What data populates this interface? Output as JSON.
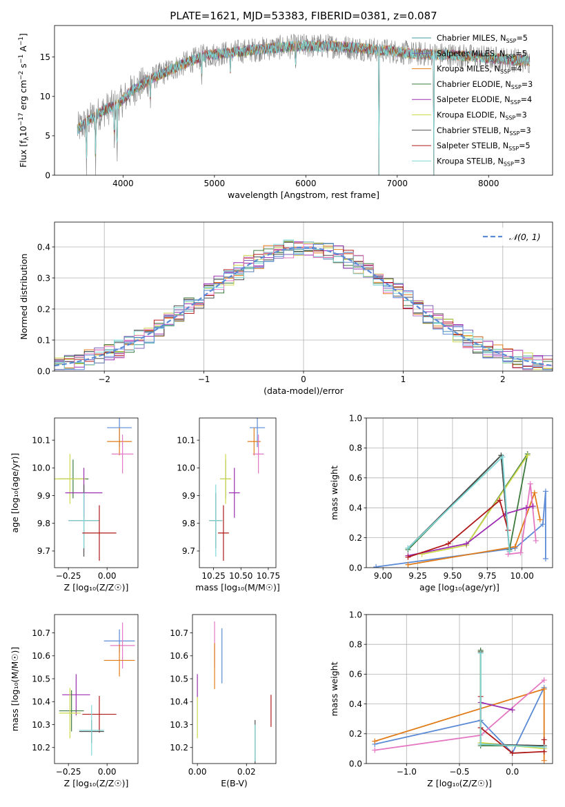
{
  "chart_data": [
    {
      "id": "spectrum",
      "type": "line",
      "title": "PLATE=1621, MJD=53383, FIBERID=0381, z=0.087",
      "xlabel": "wavelength [Angstrom, rest frame]",
      "ylabel_parts": [
        "Flux [f",
        "λ",
        "10",
        "−17",
        " erg cm",
        "−2",
        " s",
        "−1",
        " A",
        "−1",
        "]"
      ],
      "xlim": [
        3250,
        8700
      ],
      "ylim": [
        0,
        19
      ],
      "xticks": [
        4000,
        5000,
        6000,
        7000,
        8000
      ],
      "yticks": [
        0,
        5,
        10,
        15
      ],
      "continuum": [
        [
          3500,
          5.8
        ],
        [
          3650,
          7.2
        ],
        [
          3800,
          8.3
        ],
        [
          3950,
          9.0
        ],
        [
          4100,
          10.8
        ],
        [
          4300,
          12.2
        ],
        [
          4500,
          13.3
        ],
        [
          4700,
          14.3
        ],
        [
          4900,
          15.2
        ],
        [
          5200,
          15.6
        ],
        [
          5500,
          16.0
        ],
        [
          5800,
          16.3
        ],
        [
          6000,
          16.4
        ],
        [
          6300,
          16.4
        ],
        [
          6600,
          16.1
        ],
        [
          6900,
          15.8
        ],
        [
          7200,
          15.4
        ],
        [
          7500,
          15.3
        ],
        [
          7800,
          15.1
        ],
        [
          8100,
          14.8
        ],
        [
          8450,
          14.5
        ]
      ],
      "absorption_dips": [
        [
          3600,
          0
        ],
        [
          3700,
          0
        ],
        [
          3905,
          2.2
        ],
        [
          3935,
          0
        ],
        [
          4300,
          8.5
        ],
        [
          4860,
          11.5
        ],
        [
          5175,
          12.5
        ],
        [
          5890,
          12.8
        ],
        [
          6800,
          0
        ],
        [
          7400,
          0
        ]
      ],
      "legend": [
        {
          "label": "Chabrier MILES, N",
          "sub": "SSP",
          "suffix": "=5",
          "color": "#3d9e9e"
        },
        {
          "label": "Salpeter MILES, N",
          "sub": "SSP",
          "suffix": "=5",
          "color": "#7b5fb7"
        },
        {
          "label": "Kroupa MILES, N",
          "sub": "SSP",
          "suffix": "=4",
          "color": "#e07b18"
        },
        {
          "label": "Chabrier ELODIE, N",
          "sub": "SSP",
          "suffix": "=3",
          "color": "#3d7a3d"
        },
        {
          "label": "Salpeter ELODIE, N",
          "sub": "SSP",
          "suffix": "=4",
          "color": "#9b2db0"
        },
        {
          "label": "Kroupa ELODIE, N",
          "sub": "SSP",
          "suffix": "=3",
          "color": "#cdd94a"
        },
        {
          "label": "Chabrier STELIB, N",
          "sub": "SSP",
          "suffix": "=3",
          "color": "#4d4d4d"
        },
        {
          "label": "Salpeter STELIB, N",
          "sub": "SSP",
          "suffix": "=5",
          "color": "#b01818"
        },
        {
          "label": "Kroupa STELIB, N",
          "sub": "SSP",
          "suffix": "=3",
          "color": "#7fd8d8"
        }
      ]
    },
    {
      "id": "residuals",
      "type": "line",
      "xlabel": "(data-model)/error",
      "ylabel": "Normed distribution",
      "xlim": [
        -2.5,
        2.5
      ],
      "ylim": [
        0,
        0.48
      ],
      "xticks": [
        -2,
        -1,
        0,
        1,
        2
      ],
      "yticks": [
        0.0,
        0.1,
        0.2,
        0.3,
        0.4
      ],
      "grid": true,
      "legend": {
        "label": "𝒩(0, 1)",
        "placement": "top-right",
        "color": "#5b8ad6"
      },
      "histogram_colors": [
        "#3d9e9e",
        "#7b5fb7",
        "#e07b18",
        "#3d7a3d",
        "#9b2db0",
        "#cdd94a",
        "#4d4d4d",
        "#b01818",
        "#7fd8d8",
        "#e377c2",
        "#5b8ad6"
      ]
    },
    {
      "id": "age-vs-Z",
      "type": "scatter",
      "xlabel": "Z [log₁₀(Z/Z☉)]",
      "ylabel": "age  [log₁₀(age/yr)]",
      "xlim": [
        -0.34,
        0.2
      ],
      "ylim": [
        9.64,
        10.18
      ],
      "xticks": [
        -0.25,
        0.0
      ],
      "yticks": [
        9.7,
        9.8,
        9.9,
        10.0,
        10.1
      ],
      "points": [
        {
          "x": 0.08,
          "y": 10.145,
          "xerr": 0.08,
          "yerr": 0.07,
          "color": "#5b8ad6"
        },
        {
          "x": 0.08,
          "y": 10.095,
          "xerr": 0.08,
          "yerr": 0.05,
          "color": "#e07b18"
        },
        {
          "x": 0.1,
          "y": 10.05,
          "xerr": 0.07,
          "yerr": 0.07,
          "color": "#e377c2"
        },
        {
          "x": -0.22,
          "y": 9.96,
          "xerr": 0.1,
          "yerr": 0.07,
          "color": "#3d7a3d"
        },
        {
          "x": -0.24,
          "y": 9.96,
          "xerr": 0.1,
          "yerr": 0.09,
          "color": "#cdd94a"
        },
        {
          "x": -0.15,
          "y": 9.91,
          "xerr": 0.12,
          "yerr": 0.09,
          "color": "#9b2db0"
        },
        {
          "x": -0.15,
          "y": 9.81,
          "xerr": 0.1,
          "yerr": 0.13,
          "color": "#4d4d4d"
        },
        {
          "x": -0.15,
          "y": 9.81,
          "xerr": 0.1,
          "yerr": 0.1,
          "color": "#7fd8d8"
        },
        {
          "x": -0.05,
          "y": 9.765,
          "xerr": 0.11,
          "yerr": 0.1,
          "color": "#b01818"
        }
      ]
    },
    {
      "id": "age-vs-mass",
      "type": "scatter",
      "xlabel": "mass [log₁₀(M/M☉)]",
      "xlim": [
        10.12,
        10.82
      ],
      "ylim": [
        9.64,
        10.18
      ],
      "xticks": [
        10.25,
        10.5,
        10.75
      ],
      "yticks": [
        9.7,
        9.8,
        9.9,
        10.0,
        10.1
      ],
      "points": [
        {
          "x": 10.65,
          "y": 10.145,
          "xerr": 0.07,
          "yerr": 0.07,
          "color": "#5b8ad6"
        },
        {
          "x": 10.62,
          "y": 10.095,
          "xerr": 0.06,
          "yerr": 0.05,
          "color": "#e07b18"
        },
        {
          "x": 10.66,
          "y": 10.05,
          "xerr": 0.05,
          "yerr": 0.07,
          "color": "#e377c2"
        },
        {
          "x": 10.36,
          "y": 9.96,
          "xerr": 0.05,
          "yerr": 0.07,
          "color": "#3d7a3d"
        },
        {
          "x": 10.36,
          "y": 9.96,
          "xerr": 0.05,
          "yerr": 0.09,
          "color": "#cdd94a"
        },
        {
          "x": 10.44,
          "y": 9.91,
          "xerr": 0.05,
          "yerr": 0.09,
          "color": "#9b2db0"
        },
        {
          "x": 10.27,
          "y": 9.81,
          "xerr": 0.06,
          "yerr": 0.1,
          "color": "#4d4d4d"
        },
        {
          "x": 10.27,
          "y": 9.81,
          "xerr": 0.06,
          "yerr": 0.13,
          "color": "#7fd8d8"
        },
        {
          "x": 10.34,
          "y": 9.765,
          "xerr": 0.05,
          "yerr": 0.1,
          "color": "#b01818"
        }
      ]
    },
    {
      "id": "mass-weight-vs-age",
      "type": "line",
      "xlabel": "age  [log₁₀(age/yr)]",
      "ylabel": "mass weight",
      "xlim": [
        8.88,
        10.22
      ],
      "ylim": [
        0,
        1.0
      ],
      "xticks": [
        9.0,
        9.25,
        9.5,
        9.75,
        10.0
      ],
      "yticks": [
        0.0,
        0.2,
        0.4,
        0.6,
        0.8,
        1.0
      ],
      "grid": true,
      "series": [
        {
          "color": "#5b8ad6",
          "x": [
            8.95,
            9.95,
            10.15,
            10.17,
            10.17
          ],
          "y": [
            0.005,
            0.13,
            0.29,
            0.51,
            0.06
          ]
        },
        {
          "color": "#e07b18",
          "x": [
            9.18,
            9.95,
            10.09,
            10.13
          ],
          "y": [
            0.02,
            0.14,
            0.5,
            0.32
          ]
        },
        {
          "color": "#e377c2",
          "x": [
            9.9,
            9.99,
            10.06,
            10.1
          ],
          "y": [
            0.09,
            0.1,
            0.56,
            0.18
          ]
        },
        {
          "color": "#3d7a3d",
          "x": [
            9.18,
            9.85,
            9.91,
            10.04,
            9.6
          ],
          "y": [
            0.12,
            0.75,
            0.12,
            0.76,
            0.15
          ]
        },
        {
          "color": "#cdd94a",
          "x": [
            9.28,
            9.6,
            10.04
          ],
          "y": [
            0.09,
            0.15,
            0.75
          ]
        },
        {
          "color": "#9b2db0",
          "x": [
            9.18,
            9.6,
            9.88,
            10.03,
            10.08
          ],
          "y": [
            0.08,
            0.16,
            0.36,
            0.4,
            0.41
          ]
        },
        {
          "color": "#4d4d4d",
          "x": [
            9.18,
            9.85,
            9.91
          ],
          "y": [
            0.13,
            0.75,
            0.11
          ]
        },
        {
          "color": "#b01818",
          "x": [
            9.18,
            9.47,
            9.84,
            9.9
          ],
          "y": [
            0.07,
            0.16,
            0.45,
            0.25
          ]
        },
        {
          "color": "#7fd8d8",
          "x": [
            9.18,
            9.86,
            9.91
          ],
          "y": [
            0.13,
            0.74,
            0.11
          ]
        }
      ]
    },
    {
      "id": "mass-vs-Z",
      "type": "scatter",
      "xlabel": "Z [log₁₀(Z/Z☉)]",
      "ylabel": "mass [log₁₀(M/M☉)]",
      "xlim": [
        -0.34,
        0.2
      ],
      "ylim": [
        10.13,
        10.78
      ],
      "xticks": [
        -0.25,
        0.0
      ],
      "yticks": [
        10.2,
        10.3,
        10.4,
        10.5,
        10.6,
        10.7
      ],
      "points": [
        {
          "x": 0.08,
          "y": 10.665,
          "xerr": 0.1,
          "yerr": 0.05,
          "color": "#5b8ad6"
        },
        {
          "x": 0.1,
          "y": 10.645,
          "xerr": 0.08,
          "yerr": 0.1,
          "color": "#e377c2"
        },
        {
          "x": 0.08,
          "y": 10.58,
          "xerr": 0.1,
          "yerr": 0.07,
          "color": "#e07b18"
        },
        {
          "x": -0.2,
          "y": 10.43,
          "xerr": 0.09,
          "yerr": 0.09,
          "color": "#9b2db0"
        },
        {
          "x": -0.23,
          "y": 10.36,
          "xerr": 0.08,
          "yerr": 0.09,
          "color": "#3d7a3d"
        },
        {
          "x": -0.24,
          "y": 10.35,
          "xerr": 0.07,
          "yerr": 0.11,
          "color": "#cdd94a"
        },
        {
          "x": -0.05,
          "y": 10.345,
          "xerr": 0.11,
          "yerr": 0.08,
          "color": "#b01818"
        },
        {
          "x": -0.1,
          "y": 10.27,
          "xerr": 0.08,
          "yerr": 0.05,
          "color": "#4d4d4d"
        },
        {
          "x": -0.1,
          "y": 10.275,
          "xerr": 0.08,
          "yerr": 0.11,
          "color": "#7fd8d8"
        }
      ]
    },
    {
      "id": "mass-vs-ebv",
      "type": "scatter",
      "xlabel": "E(B-V)",
      "xlim": [
        -0.002,
        0.032
      ],
      "ylim": [
        10.13,
        10.78
      ],
      "xticks": [
        0.0,
        0.02
      ],
      "yticks": [
        10.2,
        10.3,
        10.4,
        10.5,
        10.6,
        10.7
      ],
      "points": [
        {
          "x": 0.0,
          "y": 10.47,
          "yerr": 0.05,
          "color": "#9b2db0"
        },
        {
          "x": 0.0,
          "y": 10.33,
          "yerr": 0.09,
          "color": "#cdd94a"
        },
        {
          "x": 0.007,
          "y": 10.65,
          "yerr": 0.1,
          "color": "#e377c2"
        },
        {
          "x": 0.007,
          "y": 10.555,
          "yerr": 0.1,
          "color": "#e07b18"
        },
        {
          "x": 0.01,
          "y": 10.6,
          "yerr": 0.12,
          "color": "#5b8ad6"
        },
        {
          "x": 0.0235,
          "y": 10.22,
          "yerr": 0.1,
          "color": "#4d4d4d"
        },
        {
          "x": 0.0235,
          "y": 10.22,
          "yerr": 0.08,
          "color": "#7fd8d8"
        },
        {
          "x": 0.03,
          "y": 10.36,
          "yerr": 0.07,
          "color": "#b01818"
        }
      ]
    },
    {
      "id": "mass-weight-vs-Z",
      "type": "line",
      "xlabel": "Z [log₁₀(Z/Z☉)]",
      "ylabel": "mass weight",
      "xlim": [
        -1.38,
        0.38
      ],
      "ylim": [
        0,
        1.0
      ],
      "xticks": [
        -1.0,
        -0.5,
        0.0
      ],
      "yticks": [
        0.0,
        0.2,
        0.4,
        0.6,
        0.8,
        1.0
      ],
      "grid": true,
      "series": [
        {
          "color": "#5b8ad6",
          "x": [
            -1.3,
            -0.3,
            0.0,
            0.3
          ],
          "y": [
            0.13,
            0.29,
            0.07,
            0.51
          ]
        },
        {
          "color": "#e07b18",
          "x": [
            -1.3,
            0.3,
            0.3
          ],
          "y": [
            0.15,
            0.5,
            0.02
          ]
        },
        {
          "color": "#e377c2",
          "x": [
            -1.3,
            -0.3,
            0.3
          ],
          "y": [
            0.09,
            0.19,
            0.56
          ]
        },
        {
          "color": "#9b2db0",
          "x": [
            -0.3,
            0.0
          ],
          "y": [
            0.41,
            0.36
          ]
        },
        {
          "color": "#3d7a3d",
          "x": [
            -0.3,
            -0.3,
            0.3
          ],
          "y": [
            0.76,
            0.12,
            0.12
          ]
        },
        {
          "color": "#cdd94a",
          "x": [
            -0.3,
            -0.3,
            0.3
          ],
          "y": [
            0.75,
            0.14,
            0.1
          ]
        },
        {
          "color": "#4d4d4d",
          "x": [
            -0.3,
            -0.3,
            0.3
          ],
          "y": [
            0.75,
            0.13,
            0.12
          ]
        },
        {
          "color": "#b01818",
          "x": [
            -0.3,
            -0.3,
            0.0,
            0.3,
            0.3
          ],
          "y": [
            0.45,
            0.24,
            0.07,
            0.08,
            0.16
          ]
        },
        {
          "color": "#7fd8d8",
          "x": [
            -0.3,
            -0.3,
            0.3
          ],
          "y": [
            0.74,
            0.13,
            0.11
          ]
        }
      ]
    }
  ]
}
